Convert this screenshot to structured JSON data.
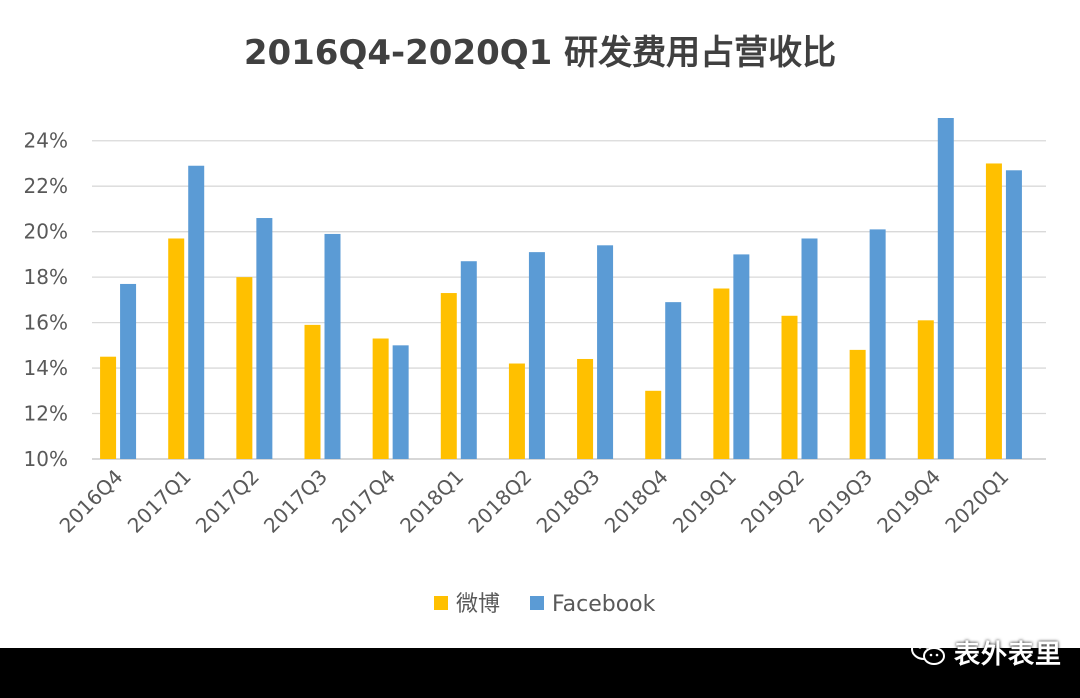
{
  "chart_data": {
    "type": "bar",
    "title": "2016Q4-2020Q1 研发费用占营收比",
    "categories": [
      "2016Q4",
      "2017Q1",
      "2017Q2",
      "2017Q3",
      "2017Q4",
      "2018Q1",
      "2018Q2",
      "2018Q3",
      "2018Q4",
      "2019Q1",
      "2019Q2",
      "2019Q3",
      "2019Q4",
      "2020Q1"
    ],
    "series": [
      {
        "name": "微博",
        "color": "#FFC000",
        "values": [
          14.5,
          19.7,
          18.0,
          15.9,
          15.3,
          17.3,
          14.2,
          14.4,
          13.0,
          17.5,
          16.3,
          14.8,
          16.1,
          23.0
        ]
      },
      {
        "name": "Facebook",
        "color": "#5B9BD5",
        "values": [
          17.7,
          22.9,
          20.6,
          19.9,
          15.0,
          18.7,
          19.1,
          19.4,
          16.9,
          19.0,
          19.7,
          20.1,
          25.0,
          22.7
        ]
      }
    ],
    "ylim": [
      10,
      25
    ],
    "yticks": [
      10,
      12,
      14,
      16,
      18,
      20,
      22,
      24
    ],
    "ytick_suffix": "%",
    "grid": true,
    "legend_position": "bottom"
  },
  "watermark": {
    "icon": "wechat-icon",
    "text": "表外表里"
  }
}
